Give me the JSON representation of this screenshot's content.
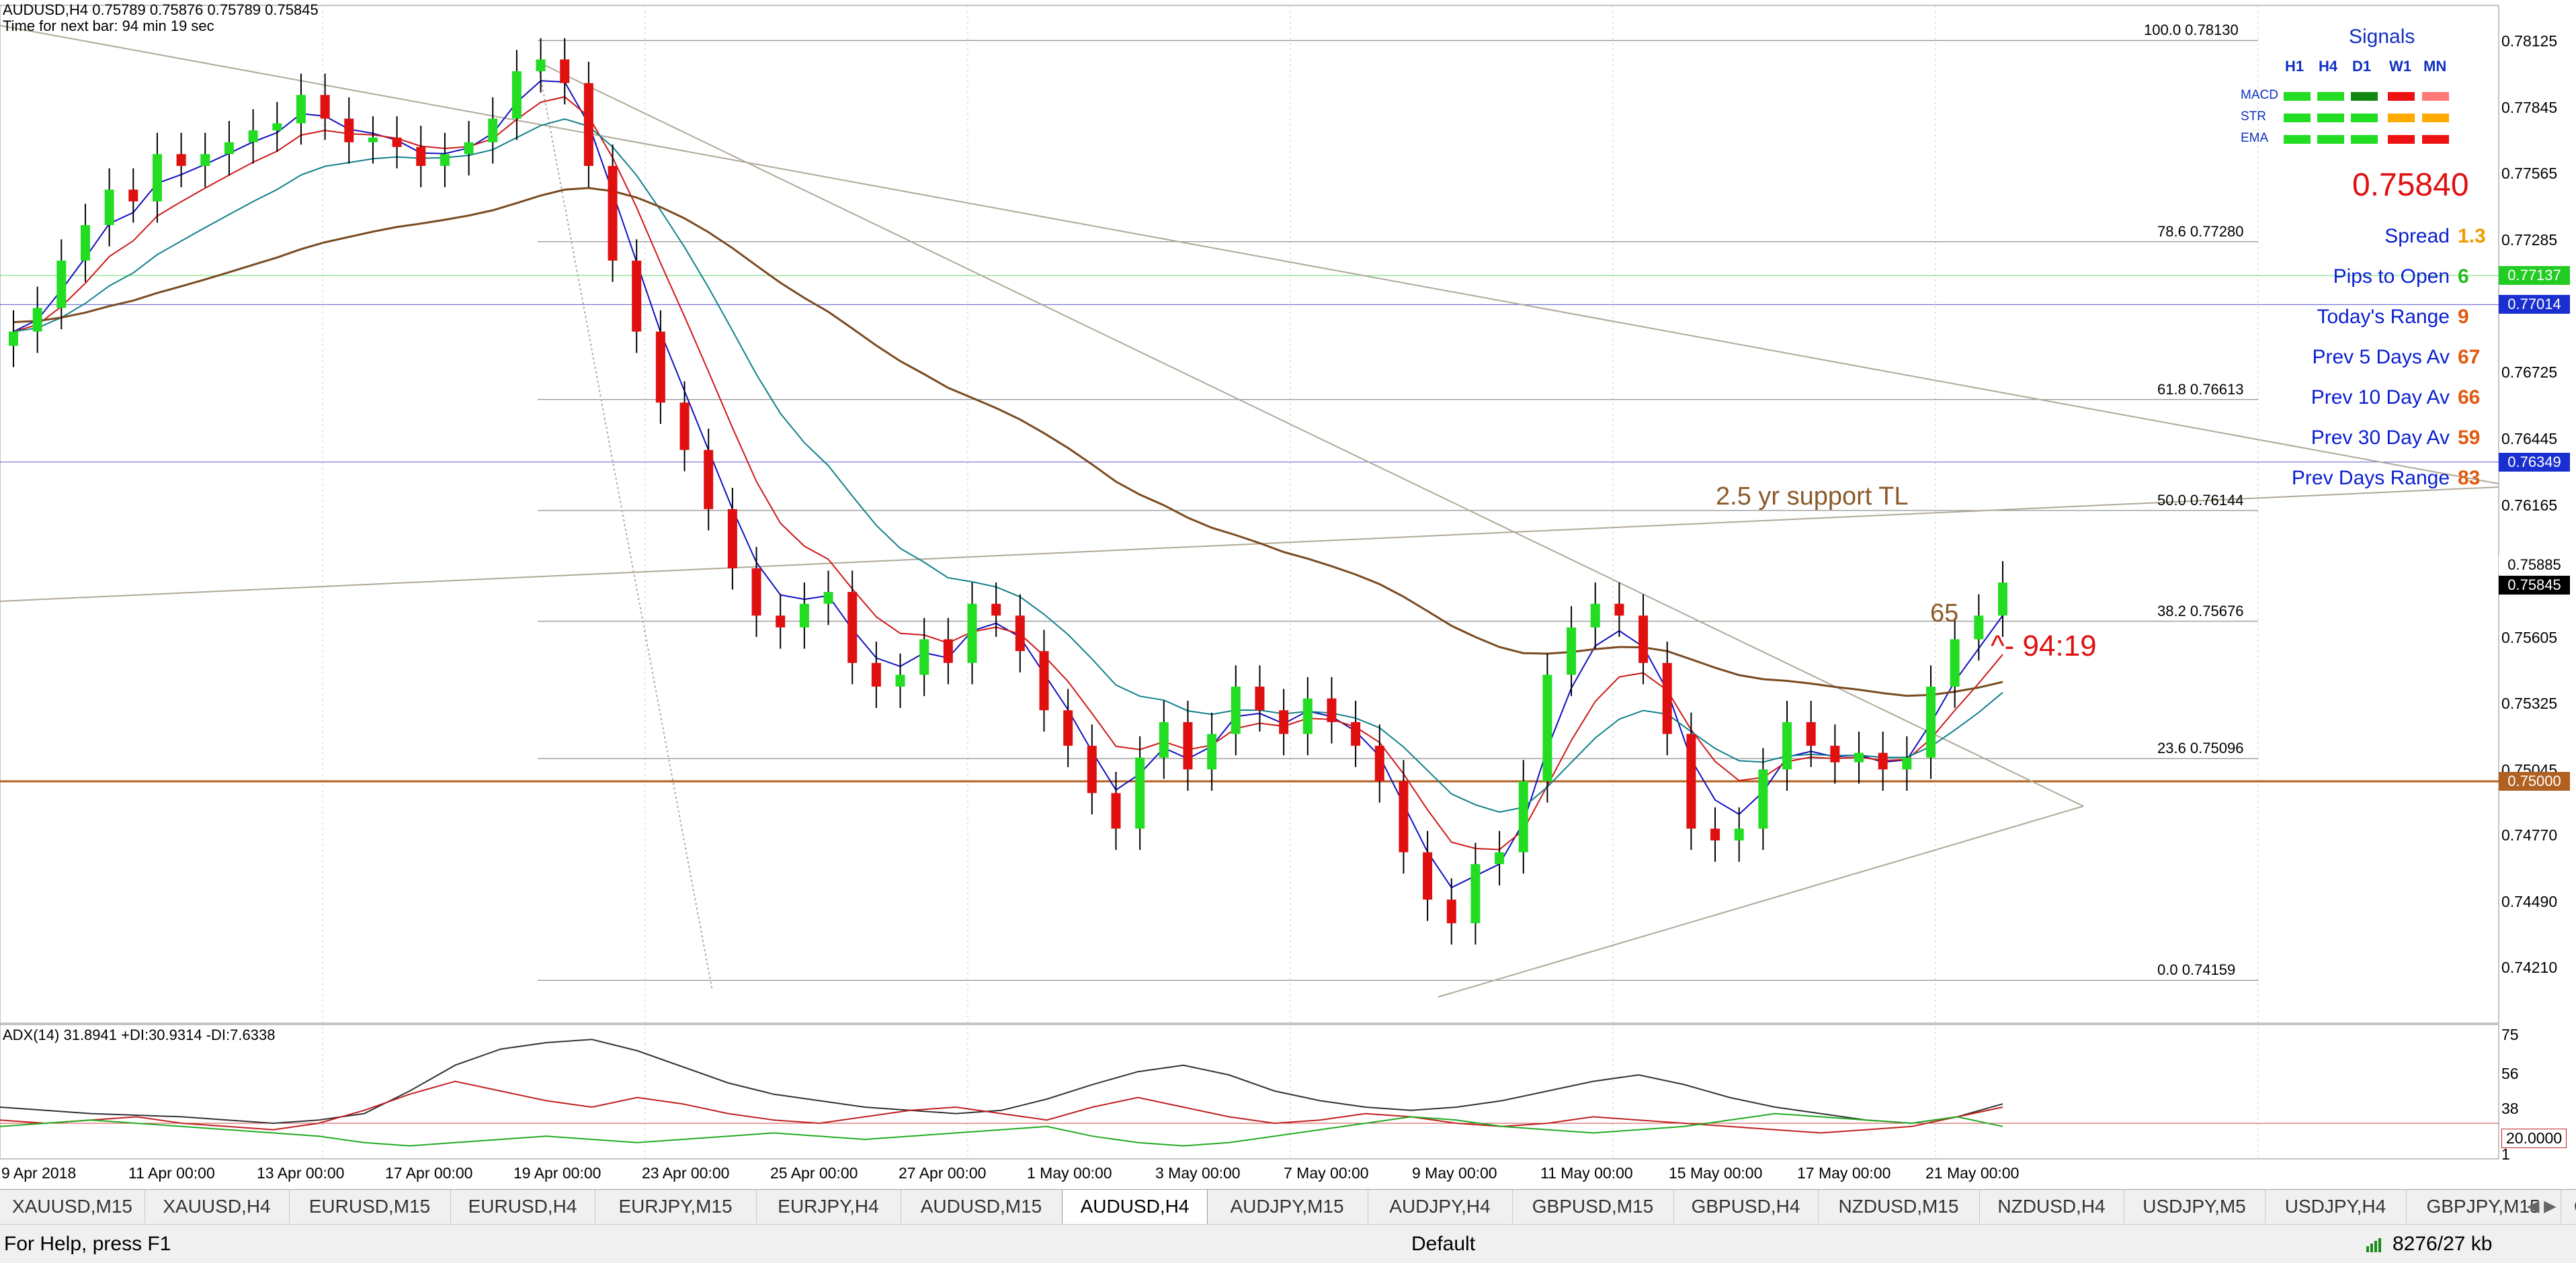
{
  "header": {
    "symbol_line": "AUDUSD,H4  0.75789 0.75876 0.75789 0.75845",
    "timer": "Time for next bar: 94 min 19 sec"
  },
  "price_axis": {
    "ticks": [
      "0.78125",
      "0.77845",
      "0.77565",
      "0.77285",
      "0.76725",
      "0.76445",
      "0.76165",
      "0.75605",
      "0.75325",
      "0.75045",
      "0.74770",
      "0.74490",
      "0.74210"
    ],
    "tags": [
      {
        "text": "0.77137",
        "bg": "#22cc22",
        "fg": "#ffffff"
      },
      {
        "text": "0.77014",
        "bg": "#1a2fd0",
        "fg": "#ffffff"
      },
      {
        "text": "0.76349",
        "bg": "#1a2fd0",
        "fg": "#ffffff"
      },
      {
        "text": "0.75885",
        "bg": "#ffffff",
        "fg": "#000000"
      },
      {
        "text": "0.75845",
        "bg": "#000000",
        "fg": "#ffffff"
      },
      {
        "text": "0.75000",
        "bg": "#b06020",
        "fg": "#ffffff"
      }
    ]
  },
  "time_axis": [
    "9 Apr 2018",
    "11 Apr 00:00",
    "13 Apr 00:00",
    "17 Apr 00:00",
    "19 Apr 00:00",
    "23 Apr 00:00",
    "25 Apr 00:00",
    "27 Apr 00:00",
    "1 May 00:00",
    "3 May 00:00",
    "7 May 00:00",
    "9 May 00:00",
    "11 May 00:00",
    "15 May 00:00",
    "17 May 00:00",
    "21 May 00:00"
  ],
  "fibonacci": [
    {
      "label": "100.0  0.78130"
    },
    {
      "label": "78.6  0.77280"
    },
    {
      "label": "61.8  0.76613"
    },
    {
      "label": "50.0  0.76144"
    },
    {
      "label": "38.2  0.75676"
    },
    {
      "label": "23.6  0.75096"
    },
    {
      "label": "0.0  0.74159"
    }
  ],
  "annotations": {
    "support_tl": "2.5 yr support TL",
    "count_label": "65",
    "countdown": "^- 94:19"
  },
  "signals": {
    "title": "Signals",
    "timeframes": [
      "H1",
      "H4",
      "D1",
      "W1",
      "MN"
    ],
    "rows": [
      {
        "name": "MACD",
        "colors": [
          "#22dd22",
          "#22dd22",
          "#118811",
          "#ee1111",
          "#ff7777"
        ]
      },
      {
        "name": "STR",
        "colors": [
          "#22dd22",
          "#22dd22",
          "#22dd22",
          "#ffaa00",
          "#ffaa00"
        ]
      },
      {
        "name": "EMA",
        "colors": [
          "#22dd22",
          "#22dd22",
          "#22dd22",
          "#ee1111",
          "#ee1111"
        ]
      }
    ]
  },
  "info_panel": {
    "price": "0.75840",
    "rows": [
      {
        "label": "Spread",
        "value": "1.3",
        "color": "#f29a00"
      },
      {
        "label": "Pips to Open",
        "value": "6",
        "color": "#22bb22"
      },
      {
        "label": "Today's Range",
        "value": "9",
        "color": "#e05a10"
      },
      {
        "label": "Prev 5 Days Av",
        "value": "67",
        "color": "#e05a10"
      },
      {
        "label": "Prev 10 Day Av",
        "value": "66",
        "color": "#e05a10"
      },
      {
        "label": "Prev 30 Day Av",
        "value": "59",
        "color": "#e05a10"
      },
      {
        "label": "Prev Days Range",
        "value": "83",
        "color": "#e05a10"
      }
    ]
  },
  "adx": {
    "label": "ADX(14) 31.8941 +DI:30.9314 -DI:7.6338",
    "ticks": [
      "75",
      "56",
      "38",
      "20.0000",
      "1"
    ]
  },
  "tabs": [
    "XAUUSD,M15",
    "XAUUSD,H4",
    "EURUSD,M15",
    "EURUSD,H4",
    "EURJPY,M15",
    "EURJPY,H4",
    "AUDUSD,M15",
    "AUDUSD,H4",
    "AUDJPY,M15",
    "AUDJPY,H4",
    "GBPUSD,M15",
    "GBPUSD,H4",
    "NZDUSD,M15",
    "NZDUSD,H4",
    "USDJPY,M5",
    "USDJPY,H4",
    "GBPJPY,M15",
    "C"
  ],
  "active_tab": "AUDUSD,H4",
  "status": {
    "help": "For Help, press F1",
    "profile": "Default",
    "traffic": "8276/27 kb"
  },
  "colors": {
    "bull_candle": "#22dd22",
    "bear_candle": "#e01010",
    "ema_fast": "#1010c0",
    "ema_mid": "#d01818",
    "ema_slow": "#10808a",
    "ma_long": "#7a4a20",
    "support_line": "#b06020",
    "trend_line": "#b0a898"
  },
  "chart_data": {
    "type": "candlestick",
    "symbol": "AUDUSD",
    "timeframe": "H4",
    "ylim": [
      0.741,
      0.7825
    ],
    "close_path": [
      0.769,
      0.77,
      0.772,
      0.7735,
      0.775,
      0.7745,
      0.7765,
      0.776,
      0.7765,
      0.777,
      0.7775,
      0.7778,
      0.779,
      0.778,
      0.777,
      0.7772,
      0.7768,
      0.776,
      0.7765,
      0.777,
      0.778,
      0.78,
      0.7805,
      0.7795,
      0.776,
      0.772,
      0.769,
      0.766,
      0.764,
      0.7615,
      0.759,
      0.757,
      0.7565,
      0.7575,
      0.758,
      0.755,
      0.754,
      0.7545,
      0.756,
      0.755,
      0.7575,
      0.757,
      0.7555,
      0.753,
      0.7515,
      0.7495,
      0.748,
      0.751,
      0.7525,
      0.7505,
      0.752,
      0.754,
      0.753,
      0.752,
      0.7535,
      0.7525,
      0.7515,
      0.75,
      0.747,
      0.745,
      0.744,
      0.7465,
      0.747,
      0.75,
      0.7545,
      0.7565,
      0.7575,
      0.757,
      0.755,
      0.752,
      0.748,
      0.7475,
      0.748,
      0.7505,
      0.7525,
      0.7515,
      0.7508,
      0.7512,
      0.7505,
      0.751,
      0.754,
      0.756,
      0.757,
      0.7584
    ]
  }
}
